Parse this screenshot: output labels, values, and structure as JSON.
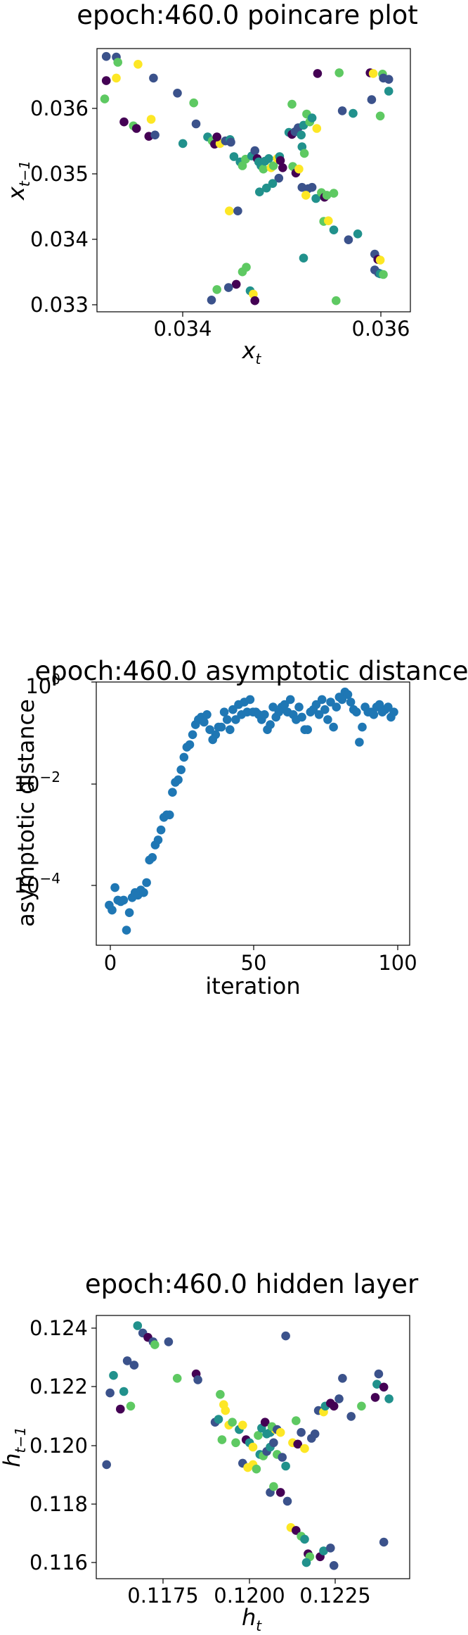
{
  "chart_data": [
    {
      "type": "scatter",
      "title": "epoch:460.0 poincare plot",
      "xlabel": "x",
      "xlabel_sub": "t",
      "ylabel": "x",
      "ylabel_sub": "t−1",
      "xlim": [
        0.03293,
        0.03698
      ],
      "ylim": [
        0.03288,
        0.0369
      ],
      "xticks": [
        0.034,
        0.036
      ],
      "xticklabels": [
        "0.034",
        "0.036"
      ],
      "yticks": [
        0.033,
        0.034,
        0.035,
        0.036
      ],
      "yticklabels": [
        "0.033",
        "0.034",
        "0.035",
        "0.036"
      ],
      "colormap": [
        "#440154",
        "#3b528b",
        "#21918c",
        "#5ec962",
        "#fde725"
      ],
      "points": [
        [
          0.03305,
          0.03678,
          1
        ],
        [
          0.03318,
          0.03677,
          1
        ],
        [
          0.0332,
          0.03669,
          3
        ],
        [
          0.03305,
          0.03641,
          0
        ],
        [
          0.03318,
          0.03645,
          4
        ],
        [
          0.03303,
          0.03613,
          3
        ],
        [
          0.03328,
          0.03578,
          0
        ],
        [
          0.0334,
          0.03572,
          3
        ],
        [
          0.03344,
          0.03568,
          0
        ],
        [
          0.03346,
          0.03666,
          4
        ],
        [
          0.03366,
          0.03645,
          1
        ],
        [
          0.03363,
          0.03582,
          4
        ],
        [
          0.0336,
          0.03556,
          0
        ],
        [
          0.03368,
          0.03558,
          1
        ],
        [
          0.03397,
          0.03622,
          1
        ],
        [
          0.03418,
          0.03607,
          3
        ],
        [
          0.03421,
          0.03575,
          1
        ],
        [
          0.03404,
          0.03545,
          2
        ],
        [
          0.03436,
          0.03555,
          2
        ],
        [
          0.03442,
          0.03549,
          3
        ],
        [
          0.03445,
          0.03544,
          0
        ],
        [
          0.03452,
          0.03545,
          4
        ],
        [
          0.03459,
          0.03549,
          1
        ],
        [
          0.03465,
          0.03551,
          2
        ],
        [
          0.0347,
          0.03525,
          2
        ],
        [
          0.03478,
          0.03517,
          2
        ],
        [
          0.03481,
          0.03511,
          3
        ],
        [
          0.03485,
          0.03521,
          3
        ],
        [
          0.03493,
          0.03526,
          2
        ],
        [
          0.03497,
          0.03534,
          1
        ],
        [
          0.035,
          0.03522,
          0
        ],
        [
          0.03502,
          0.03517,
          2
        ],
        [
          0.03505,
          0.03511,
          2
        ],
        [
          0.03508,
          0.03506,
          3
        ],
        [
          0.0351,
          0.03518,
          2
        ],
        [
          0.03515,
          0.03522,
          2
        ],
        [
          0.03518,
          0.03508,
          4
        ],
        [
          0.03521,
          0.03511,
          3
        ],
        [
          0.03526,
          0.03522,
          4
        ],
        [
          0.03529,
          0.03525,
          2
        ],
        [
          0.03533,
          0.03508,
          0
        ],
        [
          0.03528,
          0.03492,
          1
        ],
        [
          0.0352,
          0.03484,
          2
        ],
        [
          0.03512,
          0.03477,
          2
        ],
        [
          0.03503,
          0.03471,
          2
        ],
        [
          0.0353,
          0.03519,
          0
        ],
        [
          0.03541,
          0.03562,
          2
        ],
        [
          0.03545,
          0.03559,
          0
        ],
        [
          0.03549,
          0.03563,
          1
        ],
        [
          0.03553,
          0.03569,
          1
        ],
        [
          0.03557,
          0.03558,
          2
        ],
        [
          0.0356,
          0.03573,
          2
        ],
        [
          0.03564,
          0.0359,
          3
        ],
        [
          0.03568,
          0.03578,
          3
        ],
        [
          0.03571,
          0.03584,
          2
        ],
        [
          0.03545,
          0.03605,
          3
        ],
        [
          0.03558,
          0.0354,
          2
        ],
        [
          0.03561,
          0.0353,
          3
        ],
        [
          0.03546,
          0.0351,
          3
        ],
        [
          0.0355,
          0.035,
          0
        ],
        [
          0.03554,
          0.03506,
          4
        ],
        [
          0.03558,
          0.03478,
          1
        ],
        [
          0.03566,
          0.03476,
          1
        ],
        [
          0.03571,
          0.03478,
          1
        ],
        [
          0.03563,
          0.03466,
          4
        ],
        [
          0.03576,
          0.03461,
          2
        ],
        [
          0.03583,
          0.0347,
          3
        ],
        [
          0.03587,
          0.03463,
          0
        ],
        [
          0.0359,
          0.03466,
          3
        ],
        [
          0.03599,
          0.03469,
          3
        ],
        [
          0.03586,
          0.03426,
          3
        ],
        [
          0.03592,
          0.03427,
          4
        ],
        [
          0.03577,
          0.03568,
          4
        ],
        [
          0.03599,
          0.03413,
          2
        ],
        [
          0.03578,
          0.03652,
          0
        ],
        [
          0.03606,
          0.03653,
          3
        ],
        [
          0.0361,
          0.03595,
          1
        ],
        [
          0.03624,
          0.03591,
          2
        ],
        [
          0.0363,
          0.03407,
          2
        ],
        [
          0.03618,
          0.03398,
          1
        ],
        [
          0.03646,
          0.03653,
          0
        ],
        [
          0.0365,
          0.03652,
          4
        ],
        [
          0.03659,
          0.03587,
          3
        ],
        [
          0.03662,
          0.03651,
          3
        ],
        [
          0.03663,
          0.03645,
          1
        ],
        [
          0.0367,
          0.03643,
          1
        ],
        [
          0.0367,
          0.03625,
          2
        ],
        [
          0.03648,
          0.03612,
          1
        ],
        [
          0.03652,
          0.03376,
          1
        ],
        [
          0.03656,
          0.03368,
          0
        ],
        [
          0.03659,
          0.03367,
          4
        ],
        [
          0.03652,
          0.03352,
          1
        ],
        [
          0.03657,
          0.03347,
          1
        ],
        [
          0.03659,
          0.03346,
          2
        ],
        [
          0.03663,
          0.03345,
          3
        ],
        [
          0.03602,
          0.03305,
          3
        ],
        [
          0.0356,
          0.0337,
          2
        ],
        [
          0.03486,
          0.03356,
          3
        ],
        [
          0.03464,
          0.03442,
          4
        ],
        [
          0.03475,
          0.03442,
          1
        ],
        [
          0.03491,
          0.0332,
          2
        ],
        [
          0.03495,
          0.03315,
          4
        ],
        [
          0.03497,
          0.03305,
          0
        ],
        [
          0.03473,
          0.0333,
          0
        ],
        [
          0.03463,
          0.03325,
          1
        ],
        [
          0.03448,
          0.03322,
          3
        ],
        [
          0.03441,
          0.03306,
          1
        ],
        [
          0.03481,
          0.03349,
          3
        ],
        [
          0.03448,
          0.03555,
          0
        ],
        [
          0.03466,
          0.03547,
          1
        ]
      ]
    },
    {
      "type": "scatter",
      "title": "epoch:460.0 asymptotic distance",
      "xlabel": "iteration",
      "ylabel": "asymptotic distance",
      "yscale": "log",
      "xlim": [
        -4.5,
        104.5
      ],
      "ylim_log10": [
        -5.25,
        0
      ],
      "xticks": [
        0,
        50,
        100
      ],
      "xticklabels": [
        "0",
        "50",
        "100"
      ],
      "yticks_log10": [
        -4,
        -2,
        0
      ],
      "ytick_base": "10",
      "ytick_exponents": [
        "−4",
        "−2",
        "0"
      ],
      "color": "#1f77b4",
      "x": [
        0,
        1,
        2,
        3,
        4,
        5,
        6,
        7,
        8,
        9,
        10,
        11,
        12,
        13,
        14,
        15,
        16,
        17,
        18,
        19,
        20,
        21,
        22,
        23,
        24,
        25,
        26,
        27,
        28,
        29,
        30,
        31,
        32,
        33,
        34,
        35,
        36,
        37,
        38,
        39,
        40,
        41,
        42,
        43,
        44,
        45,
        46,
        47,
        48,
        49,
        50,
        51,
        52,
        53,
        54,
        55,
        56,
        57,
        58,
        59,
        60,
        61,
        62,
        63,
        64,
        65,
        66,
        67,
        68,
        69,
        70,
        71,
        72,
        73,
        74,
        75,
        76,
        77,
        78,
        79,
        80,
        81,
        82,
        83,
        84,
        85,
        86,
        87,
        88,
        89,
        90,
        91,
        92,
        93,
        94,
        95,
        96,
        97,
        98,
        99
      ],
      "y_log10": [
        -4.45,
        -4.55,
        -4.1,
        -4.35,
        -4.38,
        -4.35,
        -4.95,
        -4.6,
        -4.3,
        -4.2,
        -4.25,
        -4.15,
        -4.2,
        -4.0,
        -3.55,
        -3.5,
        -3.25,
        -3.15,
        -2.95,
        -2.7,
        -2.65,
        -2.65,
        -2.2,
        -2.0,
        -1.95,
        -1.75,
        -1.5,
        -1.3,
        -1.25,
        -1.05,
        -0.85,
        -0.75,
        -0.7,
        -0.8,
        -0.65,
        -0.95,
        -1.15,
        -1.05,
        -0.9,
        -0.9,
        -0.6,
        -0.75,
        -0.95,
        -0.55,
        -0.75,
        -0.45,
        -0.65,
        -0.4,
        -0.6,
        -0.35,
        -0.6,
        -0.6,
        -0.65,
        -0.75,
        -0.65,
        -0.95,
        -0.85,
        -0.5,
        -0.7,
        -0.6,
        -0.5,
        -0.45,
        -0.6,
        -0.35,
        -0.65,
        -0.75,
        -0.5,
        -0.7,
        -0.95,
        -0.95,
        -0.6,
        -0.55,
        -0.45,
        -0.65,
        -0.35,
        -0.55,
        -0.75,
        -0.4,
        -0.9,
        -0.5,
        -0.3,
        -0.35,
        -0.2,
        -0.25,
        -0.4,
        -0.55,
        -0.6,
        -1.2,
        -0.9,
        -0.5,
        -0.6,
        -0.6,
        -0.65,
        -0.5,
        -0.45,
        -0.6,
        -0.55,
        -0.5,
        -0.7,
        -0.6
      ]
    },
    {
      "type": "scatter",
      "title": "epoch:460.0 hidden layer",
      "xlabel": "h",
      "xlabel_sub": "t",
      "ylabel": "h",
      "ylabel_sub": "t−1",
      "xlim": [
        0.11535,
        0.12445
      ],
      "ylim": [
        0.11535,
        0.12435
      ],
      "xticks": [
        0.1175,
        0.12,
        0.1225
      ],
      "xticklabels": [
        "0.1175",
        "0.1200",
        "0.1225"
      ],
      "yticks": [
        0.116,
        0.118,
        0.12,
        0.122,
        0.124
      ],
      "yticklabels": [
        "0.116",
        "0.118",
        "0.120",
        "0.122",
        "0.124"
      ],
      "colormap": [
        "#440154",
        "#3b528b",
        "#21918c",
        "#5ec962",
        "#fde725"
      ],
      "points": [
        [
          0.11565,
          0.11925,
          1
        ],
        [
          0.11575,
          0.1217,
          1
        ],
        [
          0.11585,
          0.1223,
          2
        ],
        [
          0.11605,
          0.12115,
          0
        ],
        [
          0.11615,
          0.12175,
          2
        ],
        [
          0.11625,
          0.1228,
          1
        ],
        [
          0.11635,
          0.12125,
          3
        ],
        [
          0.11645,
          0.12265,
          1
        ],
        [
          0.11655,
          0.124,
          2
        ],
        [
          0.1167,
          0.12375,
          1
        ],
        [
          0.11685,
          0.1236,
          0
        ],
        [
          0.117,
          0.12345,
          1
        ],
        [
          0.11705,
          0.12335,
          3
        ],
        [
          0.11745,
          0.12345,
          1
        ],
        [
          0.1177,
          0.1222,
          3
        ],
        [
          0.11825,
          0.12235,
          0
        ],
        [
          0.1183,
          0.12215,
          1
        ],
        [
          0.11895,
          0.12165,
          3
        ],
        [
          0.11905,
          0.1213,
          4
        ],
        [
          0.1191,
          0.1211,
          4
        ],
        [
          0.1188,
          0.1207,
          1
        ],
        [
          0.1189,
          0.1208,
          2
        ],
        [
          0.119,
          0.1201,
          3
        ],
        [
          0.1192,
          0.1206,
          4
        ],
        [
          0.1193,
          0.1207,
          3
        ],
        [
          0.1195,
          0.12045,
          2
        ],
        [
          0.1196,
          0.1206,
          4
        ],
        [
          0.1197,
          0.1201,
          0
        ],
        [
          0.1198,
          0.12,
          2
        ],
        [
          0.1199,
          0.11985,
          4
        ],
        [
          0.1194,
          0.12,
          3
        ],
        [
          0.1196,
          0.1193,
          1
        ],
        [
          0.11975,
          0.11915,
          4
        ],
        [
          0.1199,
          0.11925,
          4
        ],
        [
          0.12,
          0.1191,
          3
        ],
        [
          0.1201,
          0.1196,
          2
        ],
        [
          0.1202,
          0.11955,
          3
        ],
        [
          0.1203,
          0.1197,
          1
        ],
        [
          0.1204,
          0.11985,
          2
        ],
        [
          0.1205,
          0.12,
          1
        ],
        [
          0.1206,
          0.1196,
          3
        ],
        [
          0.12075,
          0.1195,
          1
        ],
        [
          0.1203,
          0.1203,
          2
        ],
        [
          0.1204,
          0.12035,
          2
        ],
        [
          0.12055,
          0.12045,
          4
        ],
        [
          0.12005,
          0.12025,
          3
        ],
        [
          0.12015,
          0.1205,
          2
        ],
        [
          0.12025,
          0.1207,
          0
        ],
        [
          0.12045,
          0.12055,
          3
        ],
        [
          0.1206,
          0.12045,
          1
        ],
        [
          0.1207,
          0.12035,
          4
        ],
        [
          0.12085,
          0.1192,
          2
        ],
        [
          0.1204,
          0.1183,
          1
        ],
        [
          0.1205,
          0.1185,
          3
        ],
        [
          0.1207,
          0.1183,
          0
        ],
        [
          0.1209,
          0.118,
          1
        ],
        [
          0.121,
          0.1171,
          4
        ],
        [
          0.12115,
          0.117,
          0
        ],
        [
          0.1213,
          0.1168,
          3
        ],
        [
          0.1214,
          0.1167,
          2
        ],
        [
          0.1215,
          0.1162,
          0
        ],
        [
          0.12155,
          0.1161,
          3
        ],
        [
          0.12145,
          0.1159,
          2
        ],
        [
          0.12185,
          0.1161,
          0
        ],
        [
          0.12195,
          0.1163,
          2
        ],
        [
          0.12215,
          0.1164,
          1
        ],
        [
          0.12225,
          0.1158,
          1
        ],
        [
          0.12105,
          0.12,
          4
        ],
        [
          0.1212,
          0.11995,
          0
        ],
        [
          0.1213,
          0.12035,
          1
        ],
        [
          0.1214,
          0.1198,
          4
        ],
        [
          0.1216,
          0.12015,
          1
        ],
        [
          0.1217,
          0.1203,
          1
        ],
        [
          0.1218,
          0.1211,
          1
        ],
        [
          0.12195,
          0.12105,
          4
        ],
        [
          0.122,
          0.12125,
          2
        ],
        [
          0.12215,
          0.12135,
          0
        ],
        [
          0.12225,
          0.12125,
          0
        ],
        [
          0.1224,
          0.1215,
          1
        ],
        [
          0.1225,
          0.1222,
          1
        ],
        [
          0.12275,
          0.1209,
          1
        ],
        [
          0.12115,
          0.12075,
          3
        ],
        [
          0.12305,
          0.12125,
          3
        ],
        [
          0.12345,
          0.12155,
          0
        ],
        [
          0.1235,
          0.122,
          2
        ],
        [
          0.12355,
          0.12235,
          1
        ],
        [
          0.1237,
          0.1219,
          0
        ],
        [
          0.12385,
          0.1215,
          2
        ],
        [
          0.1237,
          0.1166,
          1
        ],
        [
          0.12085,
          0.12365,
          1
        ]
      ]
    }
  ]
}
